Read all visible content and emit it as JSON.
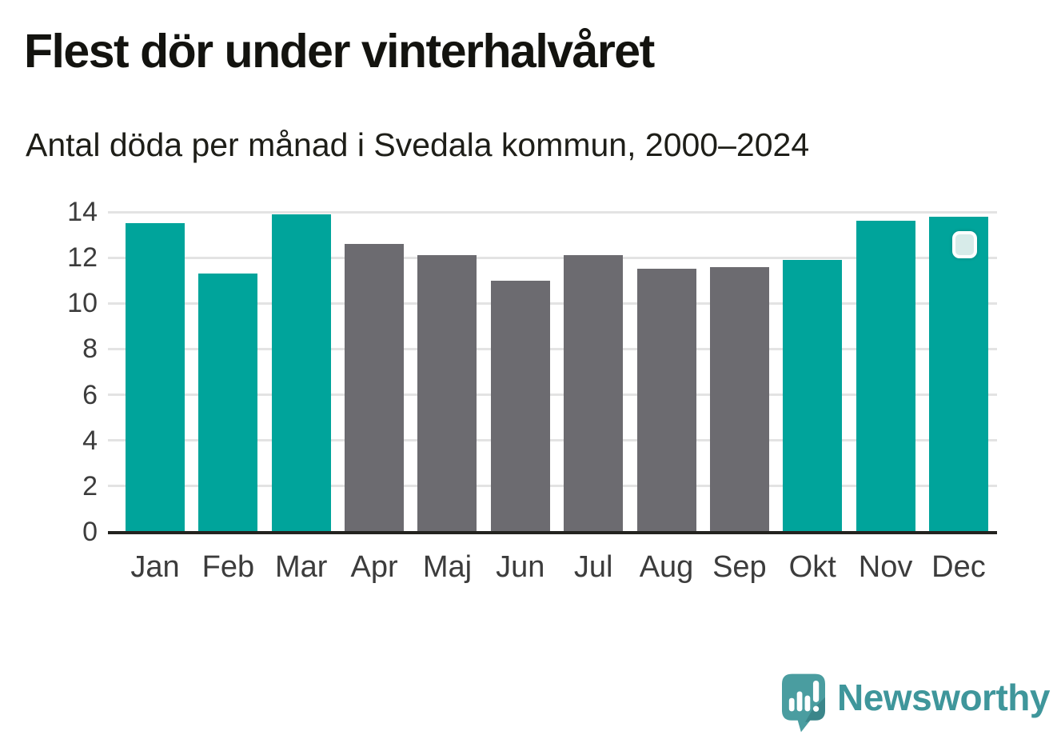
{
  "chart_data": {
    "type": "bar",
    "title": "Flest dör under vinterhalvåret",
    "subtitle": "Antal döda per månad i Svedala kommun, 2000–2024",
    "categories": [
      "Jan",
      "Feb",
      "Mar",
      "Apr",
      "Maj",
      "Jun",
      "Jul",
      "Aug",
      "Sep",
      "Okt",
      "Nov",
      "Dec"
    ],
    "values": [
      13.5,
      11.3,
      13.9,
      12.6,
      12.1,
      11.0,
      12.1,
      11.5,
      11.6,
      11.9,
      13.6,
      13.8
    ],
    "highlighted": [
      true,
      true,
      true,
      false,
      false,
      false,
      false,
      false,
      false,
      true,
      true,
      true
    ],
    "highlight_color": "#00a49b",
    "base_color": "#6c6b70",
    "xlabel": "",
    "ylabel": "",
    "ylim": [
      0,
      14
    ],
    "yticks": [
      0,
      2,
      4,
      6,
      8,
      10,
      12,
      14
    ],
    "grid": "horizontal",
    "legend_position": "none",
    "gridline_color": "#e3e3e3",
    "axis_line_color": "#23231f",
    "tick_label_color": "#3c3c3c"
  },
  "overlay_marker": {
    "fill": "#d7ebe9",
    "border": "#ffffff"
  },
  "footer": {
    "brand": "Newsworthy",
    "brand_color": "#3f969b",
    "icon_color": "#4a9da0"
  }
}
